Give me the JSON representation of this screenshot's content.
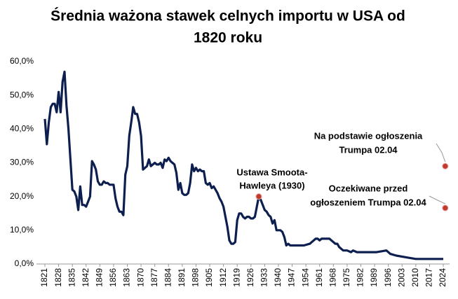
{
  "chart_data": {
    "type": "line",
    "title": [
      "Średnia ważona stawek celnych importu w USA od",
      "1820 roku"
    ],
    "x": [
      1821,
      1822,
      1823,
      1824,
      1825,
      1826,
      1827,
      1828,
      1829,
      1830,
      1831,
      1832,
      1833,
      1834,
      1835,
      1836,
      1837,
      1838,
      1839,
      1840,
      1841,
      1842,
      1843,
      1844,
      1845,
      1846,
      1847,
      1848,
      1849,
      1850,
      1851,
      1852,
      1853,
      1854,
      1855,
      1856,
      1857,
      1858,
      1859,
      1860,
      1861,
      1862,
      1863,
      1864,
      1865,
      1866,
      1867,
      1868,
      1869,
      1870,
      1871,
      1872,
      1873,
      1874,
      1875,
      1876,
      1877,
      1878,
      1879,
      1880,
      1881,
      1882,
      1883,
      1884,
      1885,
      1886,
      1887,
      1888,
      1889,
      1890,
      1891,
      1892,
      1893,
      1894,
      1895,
      1896,
      1897,
      1898,
      1899,
      1900,
      1901,
      1902,
      1903,
      1904,
      1905,
      1906,
      1907,
      1908,
      1909,
      1910,
      1911,
      1912,
      1913,
      1914,
      1915,
      1916,
      1917,
      1918,
      1919,
      1920,
      1921,
      1922,
      1923,
      1924,
      1925,
      1926,
      1927,
      1928,
      1929,
      1930,
      1931,
      1932,
      1933,
      1934,
      1935,
      1936,
      1937,
      1938,
      1939,
      1940,
      1941,
      1942,
      1943,
      1944,
      1945,
      1946,
      1947,
      1950,
      1953,
      1956,
      1957,
      1958,
      1959,
      1960,
      1961,
      1962,
      1963,
      1964,
      1965,
      1966,
      1967,
      1968,
      1969,
      1970,
      1971,
      1972,
      1973,
      1975,
      1977,
      1978,
      1980,
      1982,
      1985,
      1990,
      1995,
      1997,
      2000,
      2005,
      2010,
      2015,
      2020,
      2024
    ],
    "series": [
      {
        "color": "#0d1f4f",
        "values": [
          43,
          35.5,
          42,
          46.5,
          47.5,
          47.5,
          45,
          51,
          45,
          54,
          57,
          47,
          40,
          31,
          22,
          21.5,
          20,
          16,
          23,
          17.5,
          17.5,
          17,
          18.5,
          20,
          30.5,
          29.5,
          28,
          24.5,
          23.5,
          23.5,
          24.5,
          24,
          24,
          23.5,
          23.5,
          23.5,
          19.5,
          17,
          15.5,
          15.5,
          14.5,
          26.5,
          29,
          38,
          42,
          46.5,
          44.5,
          44.5,
          42,
          38,
          28,
          28.5,
          29,
          31,
          29,
          29.5,
          30,
          29.5,
          29.5,
          30,
          28.5,
          31,
          30.5,
          31.5,
          30.5,
          30,
          29.5,
          27,
          22,
          24,
          21,
          20.5,
          20.5,
          21,
          24,
          29.5,
          27.5,
          28.5,
          27.5,
          28,
          27.5,
          27.5,
          24,
          23.5,
          24,
          22.5,
          23,
          22,
          21,
          19.5,
          18.5,
          17,
          14,
          11,
          7,
          6,
          6,
          6.5,
          13,
          15,
          15,
          14,
          13.5,
          14,
          14,
          13.5,
          13.5,
          14,
          17,
          20,
          19,
          17.5,
          16,
          15.5,
          14.5,
          14,
          12,
          13,
          10,
          10,
          10,
          9.5,
          8,
          5.5,
          6,
          5.5,
          5.5,
          5.5,
          5.5,
          6,
          6.5,
          7,
          7.5,
          7.5,
          7,
          7.5,
          7.5,
          7.5,
          7.5,
          7.5,
          7,
          6.5,
          6,
          6,
          5,
          4.5,
          4,
          4,
          3.5,
          4,
          3.5,
          3.5,
          3.5,
          3.5,
          4,
          3,
          2.5,
          2,
          1.5,
          1.5,
          1.5,
          1.5
        ]
      }
    ],
    "xlim": [
      1820,
      2026
    ],
    "xticks": [
      1821,
      1828,
      1835,
      1842,
      1849,
      1856,
      1863,
      1870,
      1877,
      1884,
      1891,
      1898,
      1905,
      1912,
      1919,
      1926,
      1933,
      1940,
      1947,
      1954,
      1961,
      1968,
      1975,
      1982,
      1989,
      1996,
      2003,
      2010,
      2017,
      2024
    ],
    "ylim": [
      0,
      60
    ],
    "yticks": [
      {
        "value": 0,
        "label": "0,0%"
      },
      {
        "value": 10,
        "label": "10,0%"
      },
      {
        "value": 20,
        "label": "20,0%"
      },
      {
        "value": 30,
        "label": "30,0%"
      },
      {
        "value": 40,
        "label": "40,0%"
      },
      {
        "value": 50,
        "label": "50,0%"
      },
      {
        "value": 60,
        "label": "60,0%"
      }
    ],
    "markers": [
      {
        "label": [
          "Ustawa Smoota-",
          "Hawleya (1930)"
        ],
        "x": 1930,
        "value": 20,
        "color": "#c0392b"
      },
      {
        "label": [
          "Na podstawie ogłoszenia",
          "Trumpa 02.04"
        ],
        "x": 2025,
        "value": 29,
        "color": "#c0392b"
      },
      {
        "label": [
          "Oczekiwane przed",
          "ogłoszeniem Trumpa 02.04"
        ],
        "x": 2025,
        "value": 16.6,
        "color": "#c0392b"
      }
    ]
  }
}
